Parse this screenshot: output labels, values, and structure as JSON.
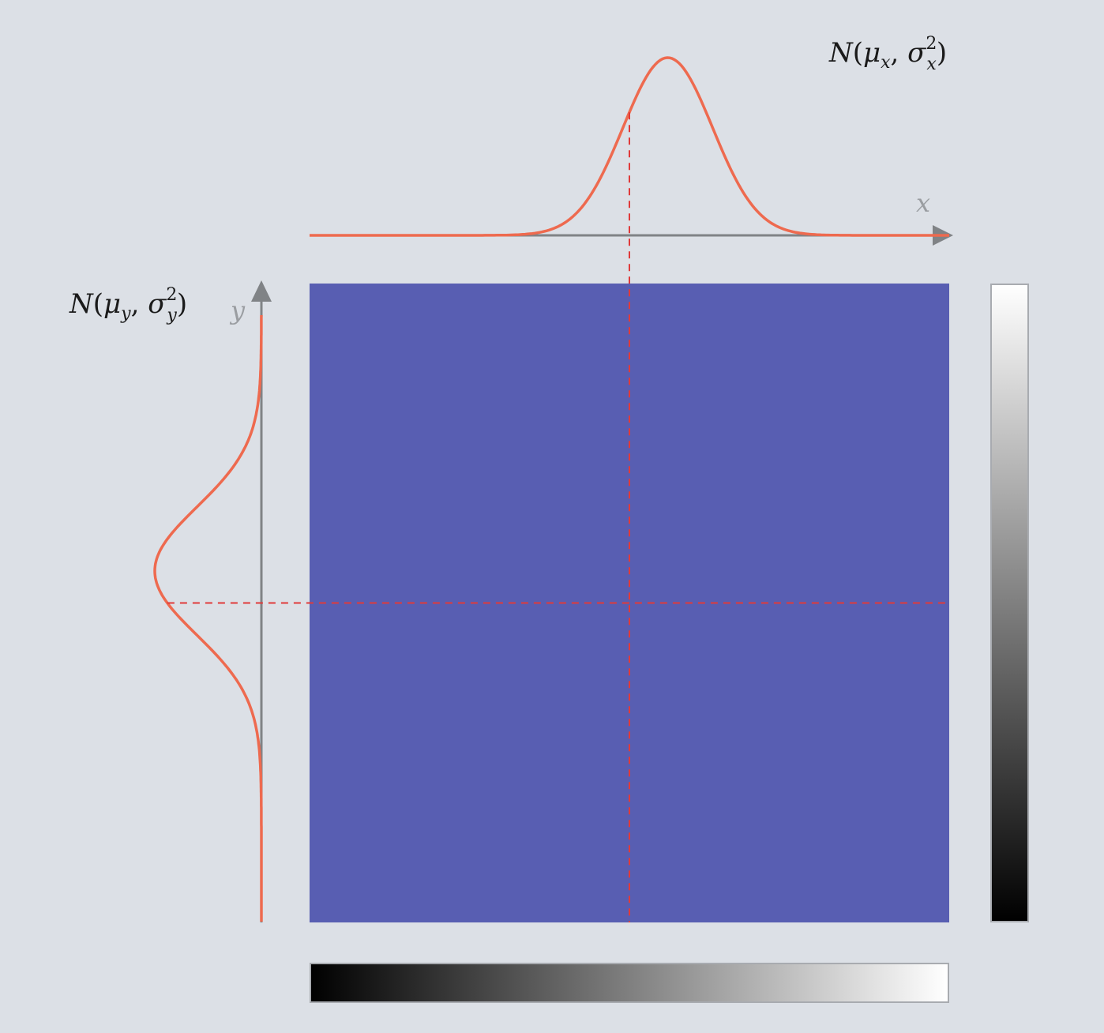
{
  "labels": {
    "x_axis": "x",
    "y_axis": "y",
    "x_dist_N": "N",
    "x_dist_mu_sub": "x",
    "x_dist_sigma_sub": "x",
    "x_dist_sigma_sup": "2",
    "y_dist_N": "N",
    "y_dist_mu_sub": "y",
    "y_dist_sigma_sub": "y",
    "y_dist_sigma_sup": "2"
  },
  "colors": {
    "background": "#dce0e6",
    "curve": "#ee6a4f",
    "axis": "#808386",
    "marker": "#e03a3a",
    "grid_fill": "#585eb2",
    "colorbar_dark": "#000000",
    "colorbar_light": "#ffffff"
  },
  "distributions": {
    "x": {
      "mean_fraction": 0.56,
      "marker_fraction": 0.5,
      "sd_fraction": 0.07
    },
    "y": {
      "mean_fraction": 0.45,
      "marker_fraction": 0.5,
      "sd_fraction": 0.1
    }
  }
}
